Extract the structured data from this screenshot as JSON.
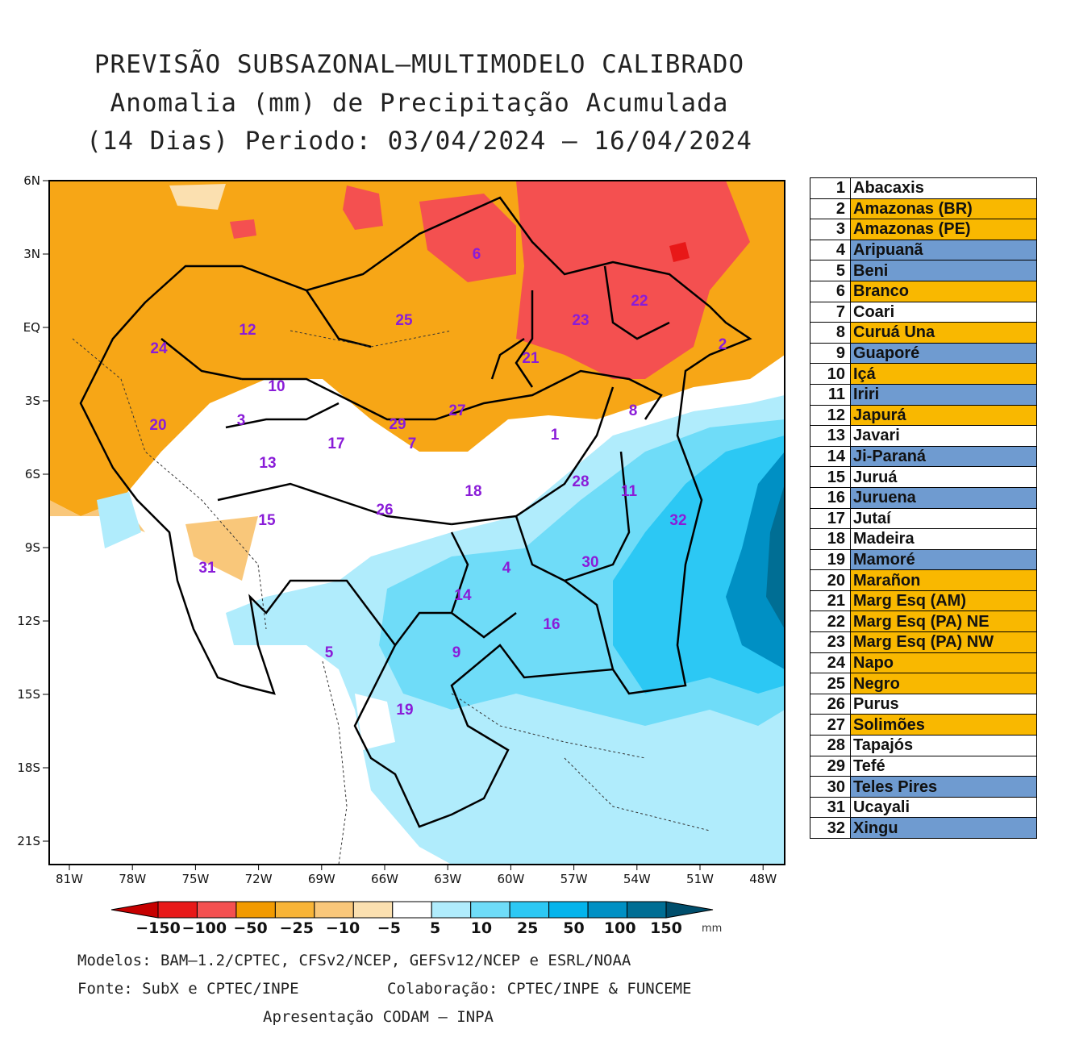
{
  "title": {
    "line1": "PREVISÃO SUBSAZONAL–MULTIMODELO CALIBRADO",
    "line2": "Anomalia (mm) de Precipitação Acumulada",
    "line3": "(14 Dias) Periodo: 03/04/2024 – 16/04/2024"
  },
  "axes": {
    "lat_labels": [
      "6N",
      "3N",
      "EQ",
      "3S",
      "6S",
      "9S",
      "12S",
      "15S",
      "18S",
      "21S"
    ],
    "lon_labels": [
      "81W",
      "78W",
      "75W",
      "72W",
      "69W",
      "66W",
      "63W",
      "60W",
      "57W",
      "54W",
      "51W",
      "48W"
    ]
  },
  "colorbar": {
    "labels": [
      "−150",
      "−100",
      "−50",
      "−25",
      "−10",
      "−5",
      "5",
      "10",
      "25",
      "50",
      "100",
      "150"
    ],
    "unit": "mm",
    "colors": [
      "#c60000",
      "#e81818",
      "#f45050",
      "#f29a00",
      "#f8b437",
      "#f9c77a",
      "#fbe0b0",
      "#ffffff",
      "#b0ecfc",
      "#6fdcf8",
      "#2cc8f4",
      "#04b4ec",
      "#0090c4",
      "#006e94",
      "#004e6c"
    ]
  },
  "basins": [
    {
      "num": "1",
      "name": "Abacaxis",
      "status": "neutral"
    },
    {
      "num": "2",
      "name": "Amazonas (BR)",
      "status": "dry"
    },
    {
      "num": "3",
      "name": "Amazonas (PE)",
      "status": "dry"
    },
    {
      "num": "4",
      "name": "Aripuanã",
      "status": "wet"
    },
    {
      "num": "5",
      "name": "Beni",
      "status": "wet"
    },
    {
      "num": "6",
      "name": "Branco",
      "status": "dry"
    },
    {
      "num": "7",
      "name": "Coari",
      "status": "neutral"
    },
    {
      "num": "8",
      "name": "Curuá Una",
      "status": "dry"
    },
    {
      "num": "9",
      "name": "Guaporé",
      "status": "wet"
    },
    {
      "num": "10",
      "name": "Içá",
      "status": "dry"
    },
    {
      "num": "11",
      "name": "Iriri",
      "status": "wet"
    },
    {
      "num": "12",
      "name": "Japurá",
      "status": "dry"
    },
    {
      "num": "13",
      "name": "Javari",
      "status": "neutral"
    },
    {
      "num": "14",
      "name": "Ji-Paraná",
      "status": "wet"
    },
    {
      "num": "15",
      "name": "Juruá",
      "status": "neutral"
    },
    {
      "num": "16",
      "name": "Juruena",
      "status": "wet"
    },
    {
      "num": "17",
      "name": "Jutaí",
      "status": "neutral"
    },
    {
      "num": "18",
      "name": "Madeira",
      "status": "neutral"
    },
    {
      "num": "19",
      "name": "Mamoré",
      "status": "wet"
    },
    {
      "num": "20",
      "name": "Marañon",
      "status": "dry"
    },
    {
      "num": "21",
      "name": "Marg Esq (AM)",
      "status": "dry"
    },
    {
      "num": "22",
      "name": "Marg Esq (PA) NE",
      "status": "dry"
    },
    {
      "num": "23",
      "name": "Marg Esq (PA) NW",
      "status": "dry"
    },
    {
      "num": "24",
      "name": "Napo",
      "status": "dry"
    },
    {
      "num": "25",
      "name": "Negro",
      "status": "dry"
    },
    {
      "num": "26",
      "name": "Purus",
      "status": "neutral"
    },
    {
      "num": "27",
      "name": "Solimões",
      "status": "dry"
    },
    {
      "num": "28",
      "name": "Tapajós",
      "status": "neutral"
    },
    {
      "num": "29",
      "name": "Tefé",
      "status": "neutral"
    },
    {
      "num": "30",
      "name": "Teles Pires",
      "status": "wet"
    },
    {
      "num": "31",
      "name": "Ucayali",
      "status": "neutral"
    },
    {
      "num": "32",
      "name": "Xingu",
      "status": "wet"
    }
  ],
  "status_colors": {
    "dry": "#f9b800",
    "wet": "#6f9bd0",
    "neutral": "#ffffff"
  },
  "footer": {
    "models": "Modelos: BAM–1.2/CPTEC, CFSv2/NCEP, GEFSv12/NCEP e ESRL/NOAA",
    "source": "Fonte: SubX e CPTEC/INPE",
    "collab": "Colaboração: CPTEC/INPE & FUNCEME",
    "presentation": "Apresentação CODAM – INPA"
  }
}
